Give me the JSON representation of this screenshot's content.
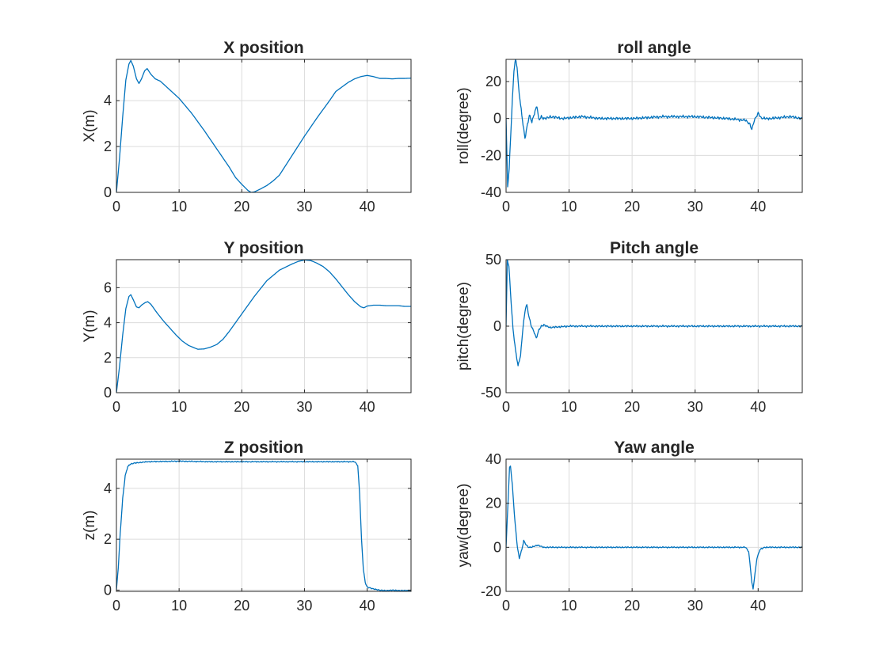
{
  "colors": {
    "line": "#0072BD",
    "axis": "#262626",
    "grid": "#dcdcdc"
  },
  "chart_data": [
    {
      "type": "line",
      "title": "X position",
      "xlabel": "",
      "ylabel": "X(m)",
      "xlim": [
        0,
        47
      ],
      "ylim": [
        0,
        5.8
      ],
      "xticks": [
        0,
        10,
        20,
        30,
        40
      ],
      "yticks": [
        0,
        2,
        4
      ],
      "grid": true,
      "series": [
        {
          "noise": 0,
          "points": [
            [
              0,
              0
            ],
            [
              0.5,
              1.5
            ],
            [
              1,
              3.3
            ],
            [
              1.5,
              4.9
            ],
            [
              2,
              5.6
            ],
            [
              2.3,
              5.75
            ],
            [
              2.7,
              5.5
            ],
            [
              3.2,
              4.95
            ],
            [
              3.6,
              4.75
            ],
            [
              4,
              4.95
            ],
            [
              4.5,
              5.3
            ],
            [
              4.9,
              5.4
            ],
            [
              5.5,
              5.15
            ],
            [
              6.2,
              4.95
            ],
            [
              7,
              4.85
            ],
            [
              8,
              4.6
            ],
            [
              9,
              4.35
            ],
            [
              10,
              4.1
            ],
            [
              12,
              3.45
            ],
            [
              14,
              2.7
            ],
            [
              16,
              1.9
            ],
            [
              18,
              1.1
            ],
            [
              19,
              0.65
            ],
            [
              20,
              0.35
            ],
            [
              21,
              0.08
            ],
            [
              21.5,
              0
            ],
            [
              22,
              0.02
            ],
            [
              23,
              0.15
            ],
            [
              24,
              0.3
            ],
            [
              25,
              0.5
            ],
            [
              26,
              0.75
            ],
            [
              28,
              1.6
            ],
            [
              30,
              2.45
            ],
            [
              32,
              3.25
            ],
            [
              34,
              4.0
            ],
            [
              35,
              4.4
            ],
            [
              36,
              4.6
            ],
            [
              37,
              4.8
            ],
            [
              38,
              4.95
            ],
            [
              39,
              5.05
            ],
            [
              40,
              5.1
            ],
            [
              41,
              5.05
            ],
            [
              42,
              4.97
            ],
            [
              43,
              4.97
            ],
            [
              44,
              4.95
            ],
            [
              45,
              4.97
            ],
            [
              46,
              4.97
            ],
            [
              47,
              4.98
            ]
          ]
        }
      ]
    },
    {
      "type": "line",
      "title": "roll angle",
      "xlabel": "",
      "ylabel": "roll(degree)",
      "xlim": [
        0,
        47
      ],
      "ylim": [
        -40,
        32
      ],
      "xticks": [
        0,
        10,
        20,
        30,
        40
      ],
      "yticks": [
        -40,
        -20,
        0,
        20
      ],
      "grid": true,
      "series": [
        {
          "noise": 0.9,
          "points": [
            [
              0,
              0
            ],
            [
              0.25,
              -37
            ],
            [
              0.5,
              -27
            ],
            [
              0.75,
              -8
            ],
            [
              1,
              10
            ],
            [
              1.25,
              26
            ],
            [
              1.5,
              32
            ],
            [
              1.75,
              28
            ],
            [
              2,
              16
            ],
            [
              2.5,
              2
            ],
            [
              3,
              -11
            ],
            [
              3.3,
              -5
            ],
            [
              3.7,
              2
            ],
            [
              4.1,
              -2
            ],
            [
              4.6,
              4
            ],
            [
              4.9,
              7
            ],
            [
              5.2,
              -1
            ],
            [
              5.6,
              1
            ],
            [
              6,
              0
            ],
            [
              7,
              1
            ],
            [
              9,
              0
            ],
            [
              12,
              1
            ],
            [
              15,
              0
            ],
            [
              20,
              0
            ],
            [
              25,
              1
            ],
            [
              30,
              1
            ],
            [
              35,
              0
            ],
            [
              38,
              -1
            ],
            [
              38.7,
              -3
            ],
            [
              39,
              -6
            ],
            [
              39.4,
              -1
            ],
            [
              40,
              3
            ],
            [
              40.5,
              0
            ],
            [
              42,
              0
            ],
            [
              45,
              1
            ],
            [
              47,
              0
            ]
          ]
        }
      ]
    },
    {
      "type": "line",
      "title": "Y position",
      "xlabel": "",
      "ylabel": "Y(m)",
      "xlim": [
        0,
        47
      ],
      "ylim": [
        0,
        7.6
      ],
      "xticks": [
        0,
        10,
        20,
        30,
        40
      ],
      "yticks": [
        0,
        2,
        4,
        6
      ],
      "grid": true,
      "series": [
        {
          "noise": 0,
          "points": [
            [
              0,
              0
            ],
            [
              0.5,
              1.5
            ],
            [
              1,
              3.3
            ],
            [
              1.5,
              4.8
            ],
            [
              2,
              5.5
            ],
            [
              2.3,
              5.6
            ],
            [
              2.7,
              5.3
            ],
            [
              3.2,
              4.9
            ],
            [
              3.6,
              4.85
            ],
            [
              4,
              5.0
            ],
            [
              4.6,
              5.15
            ],
            [
              5,
              5.2
            ],
            [
              5.5,
              5.05
            ],
            [
              6.5,
              4.55
            ],
            [
              7.5,
              4.1
            ],
            [
              8.5,
              3.7
            ],
            [
              9.5,
              3.3
            ],
            [
              10.5,
              2.95
            ],
            [
              11.5,
              2.7
            ],
            [
              12.5,
              2.55
            ],
            [
              13,
              2.48
            ],
            [
              14,
              2.5
            ],
            [
              15,
              2.6
            ],
            [
              16,
              2.75
            ],
            [
              17,
              3.05
            ],
            [
              18,
              3.5
            ],
            [
              19,
              4.0
            ],
            [
              20,
              4.5
            ],
            [
              22,
              5.5
            ],
            [
              24,
              6.4
            ],
            [
              26,
              7.0
            ],
            [
              28,
              7.35
            ],
            [
              29,
              7.5
            ],
            [
              30,
              7.58
            ],
            [
              31,
              7.55
            ],
            [
              32,
              7.4
            ],
            [
              33,
              7.2
            ],
            [
              34,
              6.9
            ],
            [
              35,
              6.5
            ],
            [
              36,
              6.05
            ],
            [
              37,
              5.6
            ],
            [
              38,
              5.2
            ],
            [
              39,
              4.9
            ],
            [
              39.5,
              4.85
            ],
            [
              40,
              4.95
            ],
            [
              41,
              5.0
            ],
            [
              42,
              5.0
            ],
            [
              43,
              4.97
            ],
            [
              44,
              4.97
            ],
            [
              45,
              4.97
            ],
            [
              46,
              4.93
            ],
            [
              47,
              4.93
            ]
          ]
        }
      ]
    },
    {
      "type": "line",
      "title": "Pitch angle",
      "xlabel": "",
      "ylabel": "pitch(degree)",
      "xlim": [
        0,
        47
      ],
      "ylim": [
        -50,
        50
      ],
      "xticks": [
        0,
        10,
        20,
        30,
        40
      ],
      "yticks": [
        -50,
        0,
        50
      ],
      "grid": true,
      "series": [
        {
          "noise": 0.8,
          "points": [
            [
              0,
              0
            ],
            [
              0.2,
              50
            ],
            [
              0.45,
              45
            ],
            [
              0.8,
              18
            ],
            [
              1.1,
              -2
            ],
            [
              1.5,
              -18
            ],
            [
              1.9,
              -30
            ],
            [
              2.3,
              -22
            ],
            [
              2.7,
              0
            ],
            [
              3.1,
              14
            ],
            [
              3.3,
              16
            ],
            [
              3.6,
              8
            ],
            [
              4,
              0
            ],
            [
              4.5,
              -5
            ],
            [
              4.8,
              -9
            ],
            [
              5.2,
              -3
            ],
            [
              5.6,
              0
            ],
            [
              6,
              1
            ],
            [
              7,
              -1
            ],
            [
              10,
              0
            ],
            [
              15,
              0
            ],
            [
              20,
              0
            ],
            [
              25,
              0
            ],
            [
              30,
              0
            ],
            [
              35,
              0
            ],
            [
              40,
              0
            ],
            [
              45,
              0
            ],
            [
              47,
              0
            ]
          ]
        }
      ]
    },
    {
      "type": "line",
      "title": "Z position",
      "xlabel": "",
      "ylabel": "z(m)",
      "xlim": [
        0,
        47
      ],
      "ylim": [
        -0.05,
        5.15
      ],
      "xticks": [
        0,
        10,
        20,
        30,
        40
      ],
      "yticks": [
        0,
        2,
        4
      ],
      "grid": true,
      "series": [
        {
          "noise": 0.025,
          "points": [
            [
              0,
              0
            ],
            [
              0.3,
              0.9
            ],
            [
              0.6,
              2.2
            ],
            [
              1,
              3.6
            ],
            [
              1.4,
              4.5
            ],
            [
              1.8,
              4.85
            ],
            [
              2.2,
              4.95
            ],
            [
              3,
              5.0
            ],
            [
              5,
              5.05
            ],
            [
              10,
              5.07
            ],
            [
              15,
              5.05
            ],
            [
              20,
              5.05
            ],
            [
              25,
              5.05
            ],
            [
              30,
              5.05
            ],
            [
              35,
              5.05
            ],
            [
              38,
              5.05
            ],
            [
              38.5,
              4.9
            ],
            [
              38.8,
              3.8
            ],
            [
              39.1,
              2.0
            ],
            [
              39.4,
              0.8
            ],
            [
              39.7,
              0.3
            ],
            [
              40,
              0.12
            ],
            [
              41,
              0.05
            ],
            [
              42,
              0
            ],
            [
              43,
              -0.02
            ],
            [
              44,
              0
            ],
            [
              45,
              -0.02
            ],
            [
              46,
              -0.02
            ],
            [
              47,
              -0.02
            ]
          ]
        }
      ]
    },
    {
      "type": "line",
      "title": "Yaw angle",
      "xlabel": "",
      "ylabel": "yaw(degree)",
      "xlim": [
        0,
        47
      ],
      "ylim": [
        -20,
        40
      ],
      "xticks": [
        0,
        10,
        20,
        30,
        40
      ],
      "yticks": [
        -20,
        0,
        20,
        40
      ],
      "grid": true,
      "series": [
        {
          "noise": 0.35,
          "points": [
            [
              0,
              0
            ],
            [
              0.3,
              20
            ],
            [
              0.55,
              36
            ],
            [
              0.7,
              37
            ],
            [
              1,
              28
            ],
            [
              1.4,
              12
            ],
            [
              1.8,
              0
            ],
            [
              2.1,
              -5
            ],
            [
              2.5,
              -1
            ],
            [
              2.8,
              3
            ],
            [
              3.2,
              1
            ],
            [
              3.6,
              0
            ],
            [
              4,
              0
            ],
            [
              5,
              1
            ],
            [
              6,
              0
            ],
            [
              10,
              0
            ],
            [
              15,
              0
            ],
            [
              20,
              0
            ],
            [
              25,
              0
            ],
            [
              30,
              0
            ],
            [
              35,
              0
            ],
            [
              38,
              0
            ],
            [
              38.5,
              -2
            ],
            [
              38.8,
              -10
            ],
            [
              39,
              -16
            ],
            [
              39.2,
              -19
            ],
            [
              39.5,
              -12
            ],
            [
              39.8,
              -5
            ],
            [
              40.3,
              -1
            ],
            [
              41,
              0
            ],
            [
              45,
              0
            ],
            [
              47,
              0
            ]
          ]
        }
      ]
    }
  ]
}
